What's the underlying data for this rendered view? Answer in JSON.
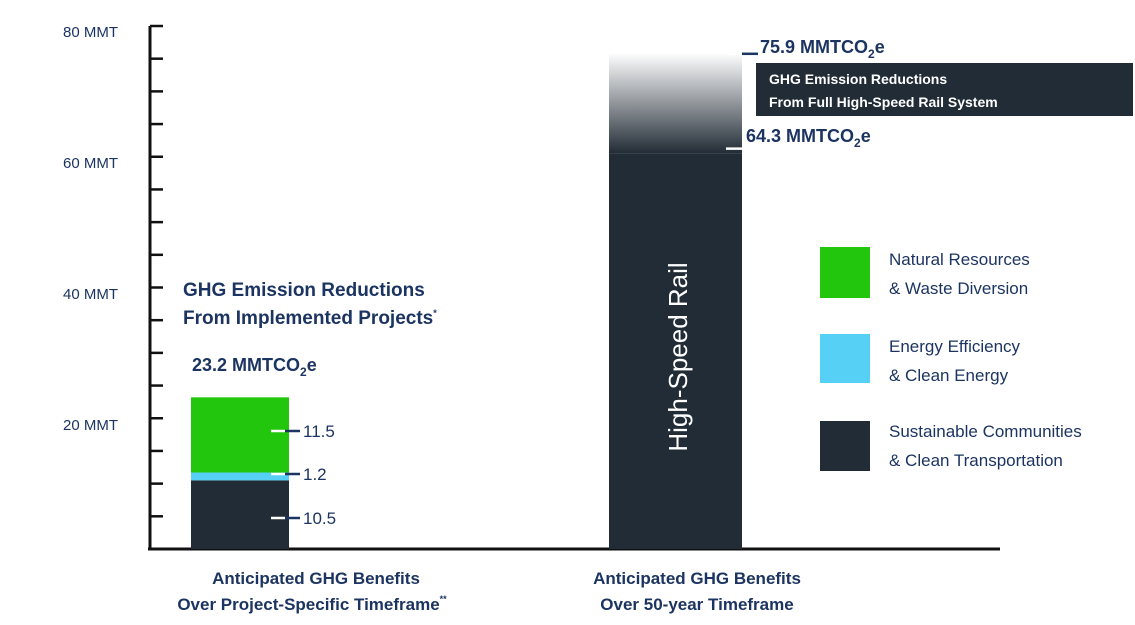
{
  "colors": {
    "natural_resources": "#22c60c",
    "energy_efficiency": "#56d0f5",
    "sustainable_communities": "#222c36",
    "text_blue": "#1c3461",
    "axis": "#111111"
  },
  "chart_data": {
    "type": "bar",
    "stacked": true,
    "ylim": [
      0,
      80
    ],
    "y_tick_labels": [
      "80 MMT",
      "60 MMT",
      "40 MMT",
      "20 MMT"
    ],
    "y_tick_values": [
      80,
      60,
      40,
      20
    ],
    "minor_tick_step": 5,
    "categories": [
      {
        "line1": "Anticipated GHG Benefits",
        "line2": "Over Project-Specific Timeframe",
        "note": "**"
      },
      {
        "line1": "Anticipated GHG Benefits",
        "line2": "Over 50-year Timeframe",
        "note": ""
      }
    ],
    "series": [
      {
        "name": "Sustainable Communities & Clean Transportation",
        "line1": "Sustainable Communities",
        "line2": "& Clean Transportation",
        "values": [
          10.5,
          64.3
        ],
        "labels": [
          "10.5",
          ""
        ]
      },
      {
        "name": "Energy Efficiency & Clean Energy",
        "line1": "Energy Efficiency",
        "line2": "& Clean Energy",
        "values": [
          1.2,
          0
        ],
        "labels": [
          "1.2",
          ""
        ]
      },
      {
        "name": "Natural Resources & Waste Diversion",
        "line1": "Natural Resources",
        "line2": "& Waste Diversion",
        "values": [
          11.5,
          0
        ],
        "labels": [
          "11.5",
          ""
        ]
      }
    ],
    "hsr": {
      "bar_label": "High-Speed Rail",
      "low_value": 64.3,
      "high_value": 75.9,
      "low_label": {
        "num": "64.3 MMTCO",
        "sub": "2",
        "tail": "e"
      },
      "high_label": {
        "num": "75.9 MMTCO",
        "sub": "2",
        "tail": "e"
      },
      "box_line1": "GHG Emission Reductions",
      "box_line2": "From Full High-Speed Rail System"
    },
    "implemented": {
      "line1": "GHG Emission Reductions",
      "line2": "From Implemented Projects",
      "note": "*",
      "total_value": 23.2,
      "total_label": {
        "num": "23.2 MMTCO",
        "sub": "2",
        "tail": "e"
      }
    },
    "legend_placement": "right"
  }
}
